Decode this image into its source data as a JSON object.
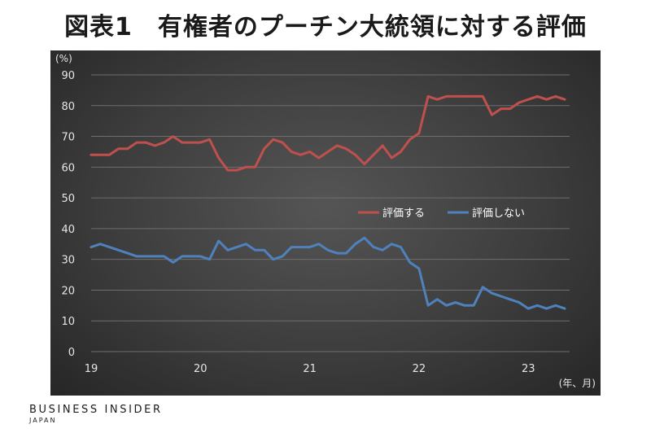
{
  "chart_data": {
    "type": "line",
    "title": "図表1　有権者のプーチン大統領に対する評価",
    "ylabel": "(%)",
    "xlabel": "(年、月)",
    "ylim": [
      0,
      90
    ],
    "yticks": [
      0,
      10,
      20,
      30,
      40,
      50,
      60,
      70,
      80,
      90
    ],
    "xlim": [
      0,
      52
    ],
    "xticks": [
      {
        "label": "19",
        "index": 0
      },
      {
        "label": "20",
        "index": 12
      },
      {
        "label": "21",
        "index": 24
      },
      {
        "label": "22",
        "index": 36
      },
      {
        "label": "23",
        "index": 48
      }
    ],
    "grid": true,
    "legend_position": "center",
    "series": [
      {
        "name": "評価する",
        "color": "#c0504d",
        "values": [
          64,
          64,
          64,
          66,
          66,
          68,
          68,
          67,
          68,
          70,
          68,
          68,
          68,
          69,
          63,
          59,
          59,
          60,
          60,
          66,
          69,
          68,
          65,
          64,
          65,
          63,
          65,
          67,
          66,
          64,
          61,
          64,
          67,
          63,
          65,
          69,
          71,
          83,
          82,
          83,
          83,
          83,
          83,
          83,
          77,
          79,
          79,
          81,
          82,
          83,
          82,
          83,
          82
        ]
      },
      {
        "name": "評価しない",
        "color": "#4f81bd",
        "values": [
          34,
          35,
          34,
          33,
          32,
          31,
          31,
          31,
          31,
          29,
          31,
          31,
          31,
          30,
          36,
          33,
          34,
          35,
          33,
          33,
          30,
          31,
          34,
          34,
          34,
          35,
          33,
          32,
          32,
          35,
          37,
          34,
          33,
          35,
          34,
          29,
          27,
          15,
          17,
          15,
          16,
          15,
          15,
          21,
          19,
          18,
          17,
          16,
          14,
          15,
          14,
          15,
          14
        ]
      }
    ]
  },
  "branding": {
    "name": "BUSINESS INSIDER",
    "region": "JAPAN"
  }
}
